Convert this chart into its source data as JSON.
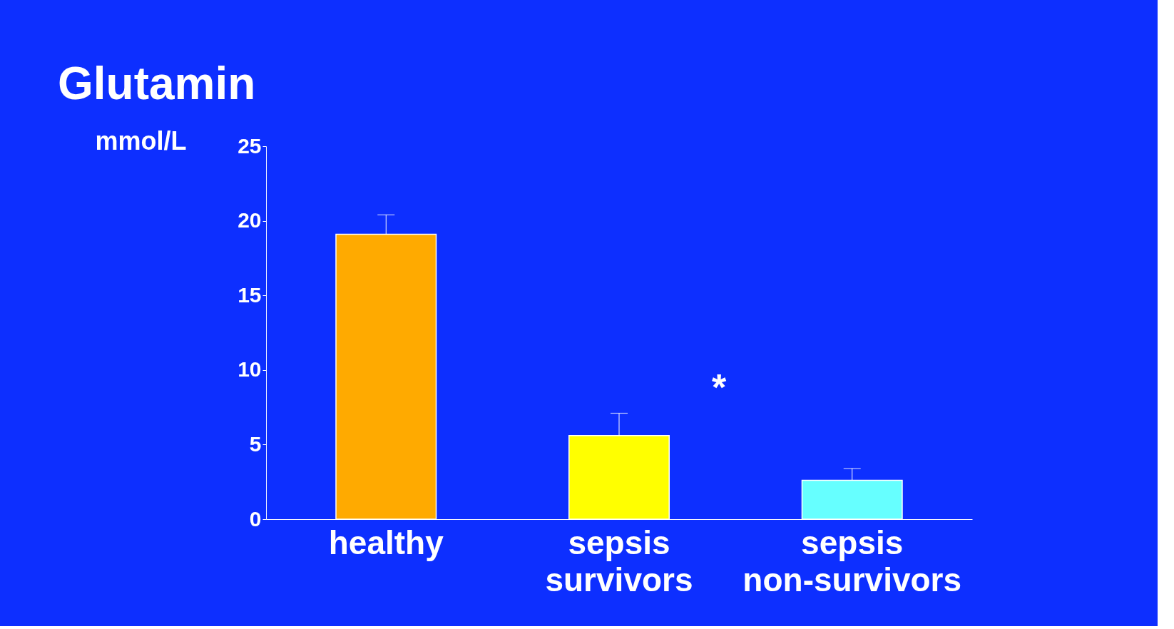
{
  "chart_data": {
    "type": "bar",
    "title": "Glutamin",
    "ylabel": "mmol/L",
    "categories": [
      "healthy",
      "sepsis survivors",
      "sepsis non-survivors"
    ],
    "values": [
      19.1,
      5.6,
      2.6
    ],
    "colors": [
      "#ffaa00",
      "#ffff00",
      "#66ffff"
    ],
    "errors": [
      [
        19.1,
        20.4
      ],
      [
        5.6,
        7.1
      ],
      [
        2.6,
        3.4
      ]
    ],
    "ylim": [
      0,
      25
    ],
    "yticks": [
      0,
      5,
      10,
      15,
      20,
      25
    ],
    "grid": false,
    "annotations": [
      "*"
    ]
  }
}
